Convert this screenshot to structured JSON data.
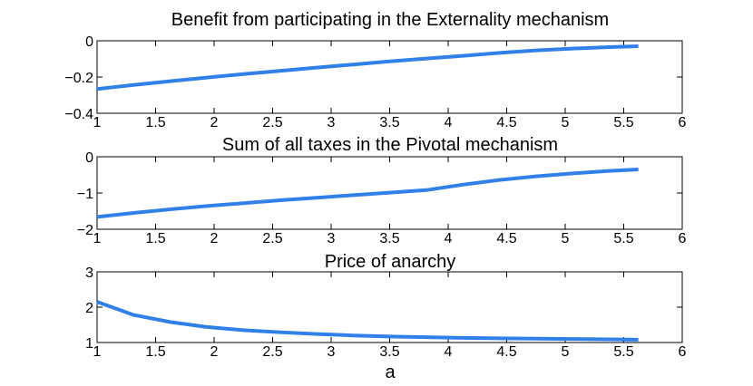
{
  "chart_data": [
    {
      "type": "line",
      "title": "Benefit from participating in the Externality mechanism",
      "xlabel": "",
      "ylabel": "",
      "xlim": [
        1,
        6
      ],
      "ylim": [
        -0.4,
        0
      ],
      "xticks": [
        1,
        1.5,
        2,
        2.5,
        3,
        3.5,
        4,
        4.5,
        5,
        5.5,
        6
      ],
      "xtick_labels": [
        "1",
        "1.5",
        "2",
        "2.5",
        "3",
        "3.5",
        "4",
        "4.5",
        "5",
        "5.5",
        "6"
      ],
      "yticks": [
        -0.4,
        -0.2,
        0
      ],
      "ytick_labels": [
        "−0.4",
        "−0.2",
        "0"
      ],
      "grid": false,
      "series": [
        {
          "color": "#3080e8",
          "x": [
            1,
            1.3125,
            1.625,
            1.9375,
            2.25,
            2.5625,
            2.875,
            3.1875,
            3.5,
            3.8125,
            4.125,
            4.4375,
            4.75,
            5.0625,
            5.375,
            5.625
          ],
          "y": [
            -0.266,
            -0.244,
            -0.223,
            -0.203,
            -0.184,
            -0.166,
            -0.148,
            -0.131,
            -0.114,
            -0.098,
            -0.083,
            -0.067,
            -0.053,
            -0.043,
            -0.035,
            -0.03
          ]
        }
      ]
    },
    {
      "type": "line",
      "title": "Sum of all taxes in the Pivotal mechanism",
      "xlabel": "",
      "ylabel": "",
      "xlim": [
        1,
        6
      ],
      "ylim": [
        -2,
        0
      ],
      "xticks": [
        1,
        1.5,
        2,
        2.5,
        3,
        3.5,
        4,
        4.5,
        5,
        5.5,
        6
      ],
      "xtick_labels": [
        "1",
        "1.5",
        "2",
        "2.5",
        "3",
        "3.5",
        "4",
        "4.5",
        "5",
        "5.5",
        "6"
      ],
      "yticks": [
        -2,
        -1,
        0
      ],
      "ytick_labels": [
        "−2",
        "−1",
        "0"
      ],
      "grid": false,
      "series": [
        {
          "color": "#3080e8",
          "x": [
            1,
            1.3125,
            1.625,
            1.9375,
            2.25,
            2.5625,
            2.875,
            3.1875,
            3.5,
            3.8125,
            4.125,
            4.4375,
            4.75,
            5.0625,
            5.375,
            5.625
          ],
          "y": [
            -1.66,
            -1.55,
            -1.45,
            -1.36,
            -1.28,
            -1.2,
            -1.13,
            -1.06,
            -0.99,
            -0.92,
            -0.77,
            -0.64,
            -0.54,
            -0.46,
            -0.39,
            -0.35
          ]
        }
      ]
    },
    {
      "type": "line",
      "title": "Price of anarchy",
      "xlabel": "a",
      "ylabel": "",
      "xlim": [
        1,
        6
      ],
      "ylim": [
        1,
        3
      ],
      "xticks": [
        1,
        1.5,
        2,
        2.5,
        3,
        3.5,
        4,
        4.5,
        5,
        5.5,
        6
      ],
      "xtick_labels": [
        "1",
        "1.5",
        "2",
        "2.5",
        "3",
        "3.5",
        "4",
        "4.5",
        "5",
        "5.5",
        "6"
      ],
      "yticks": [
        1,
        2,
        3
      ],
      "ytick_labels": [
        "1",
        "2",
        "3"
      ],
      "grid": false,
      "series": [
        {
          "color": "#3080e8",
          "x": [
            1,
            1.3125,
            1.625,
            1.9375,
            2.25,
            2.5625,
            2.875,
            3.1875,
            3.5,
            3.8125,
            4.125,
            4.4375,
            4.75,
            5.0625,
            5.375,
            5.625
          ],
          "y": [
            2.15,
            1.78,
            1.58,
            1.44,
            1.35,
            1.29,
            1.24,
            1.2,
            1.17,
            1.15,
            1.13,
            1.12,
            1.11,
            1.1,
            1.09,
            1.08
          ]
        }
      ]
    }
  ]
}
